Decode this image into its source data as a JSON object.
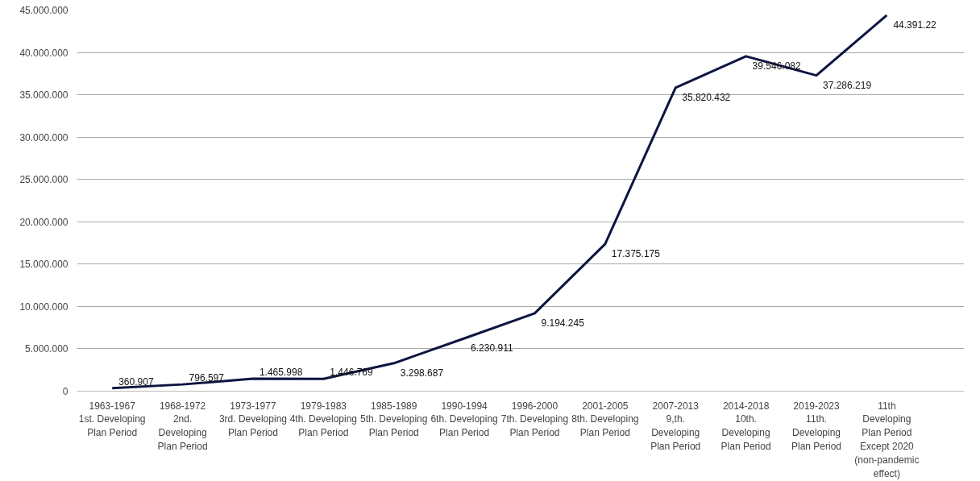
{
  "chart_data": {
    "type": "line",
    "categories": [
      "1963-1967\n1st. Developing\nPlan Period",
      "1968-1972\n2nd.\nDeveloping\nPlan Period",
      "1973-1977\n3rd. Developing\nPlan Period",
      "1979-1983\n4th. Developing\nPlan Period",
      "1985-1989\n5th. Developing\nPlan Period",
      "1990-1994\n6th. Developing\nPlan Period",
      "1996-2000\n7th. Developing\nPlan Period",
      "2001-2005\n8th. Developing\nPlan Period",
      "2007-2013\n9,th.\nDeveloping\nPlan Period",
      "2014-2018\n10th.\nDeveloping\nPlan Period",
      "2019-2023\n11th.\nDeveloping\nPlan Period",
      "11th\nDeveloping\nPlan Period\nExcept 2020\n(non-pandemic\neffect)"
    ],
    "series": [
      {
        "color": "#0d1440",
        "values": [
          360907,
          796597,
          1465998,
          1446769,
          3298687,
          6230911,
          9194245,
          17375175,
          35820432,
          39546082,
          37286219,
          44391220
        ],
        "value_labels": [
          "360.907",
          "796.597",
          "1.465.998",
          "1.446.769",
          "3.298.687",
          "6.230.911",
          "9.194.245",
          "17.375.175",
          "35.820.432",
          "39.546.082",
          "37.286.219",
          "44.391.22"
        ]
      }
    ],
    "ylim": [
      0,
      45000000
    ],
    "yticks": [
      {
        "value": 0,
        "label": "0"
      },
      {
        "value": 5000000,
        "label": "5.000.000"
      },
      {
        "value": 10000000,
        "label": "10.000.000"
      },
      {
        "value": 15000000,
        "label": "15.000.000"
      },
      {
        "value": 20000000,
        "label": "20.000.000"
      },
      {
        "value": 25000000,
        "label": "25.000.000"
      },
      {
        "value": 30000000,
        "label": "30.000.000"
      },
      {
        "value": 35000000,
        "label": "35.000.000"
      },
      {
        "value": 40000000,
        "label": "40.000.000"
      },
      {
        "value": 45000000,
        "label": "45.000.000"
      }
    ],
    "grid": "y",
    "marker": "none",
    "line_style": "solid"
  }
}
